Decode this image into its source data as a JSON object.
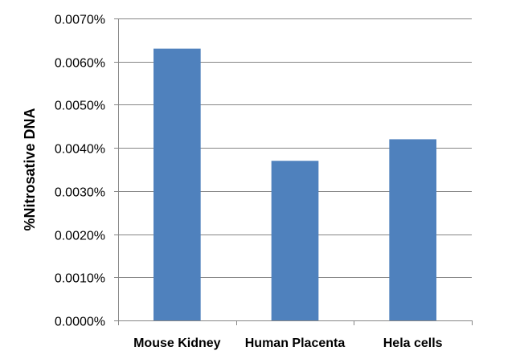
{
  "chart_data": {
    "type": "bar",
    "categories": [
      "Mouse Kidney",
      "Human Placenta",
      "Hela cells"
    ],
    "values": [
      0.0063,
      0.0037,
      0.0042
    ],
    "title": "",
    "xlabel": "",
    "ylabel": "%Nitrosative DNA",
    "ylim": [
      0,
      0.007
    ],
    "yticks": [
      0,
      0.001,
      0.002,
      0.003,
      0.004,
      0.005,
      0.006,
      0.007
    ],
    "ytick_labels": [
      "0.0000%",
      "0.0010%",
      "0.0020%",
      "0.0030%",
      "0.0040%",
      "0.0050%",
      "0.0060%",
      "0.0070%"
    ],
    "grid": true,
    "legend": "none",
    "bar_color": "#4F81BD",
    "grid_color": "#868686"
  }
}
